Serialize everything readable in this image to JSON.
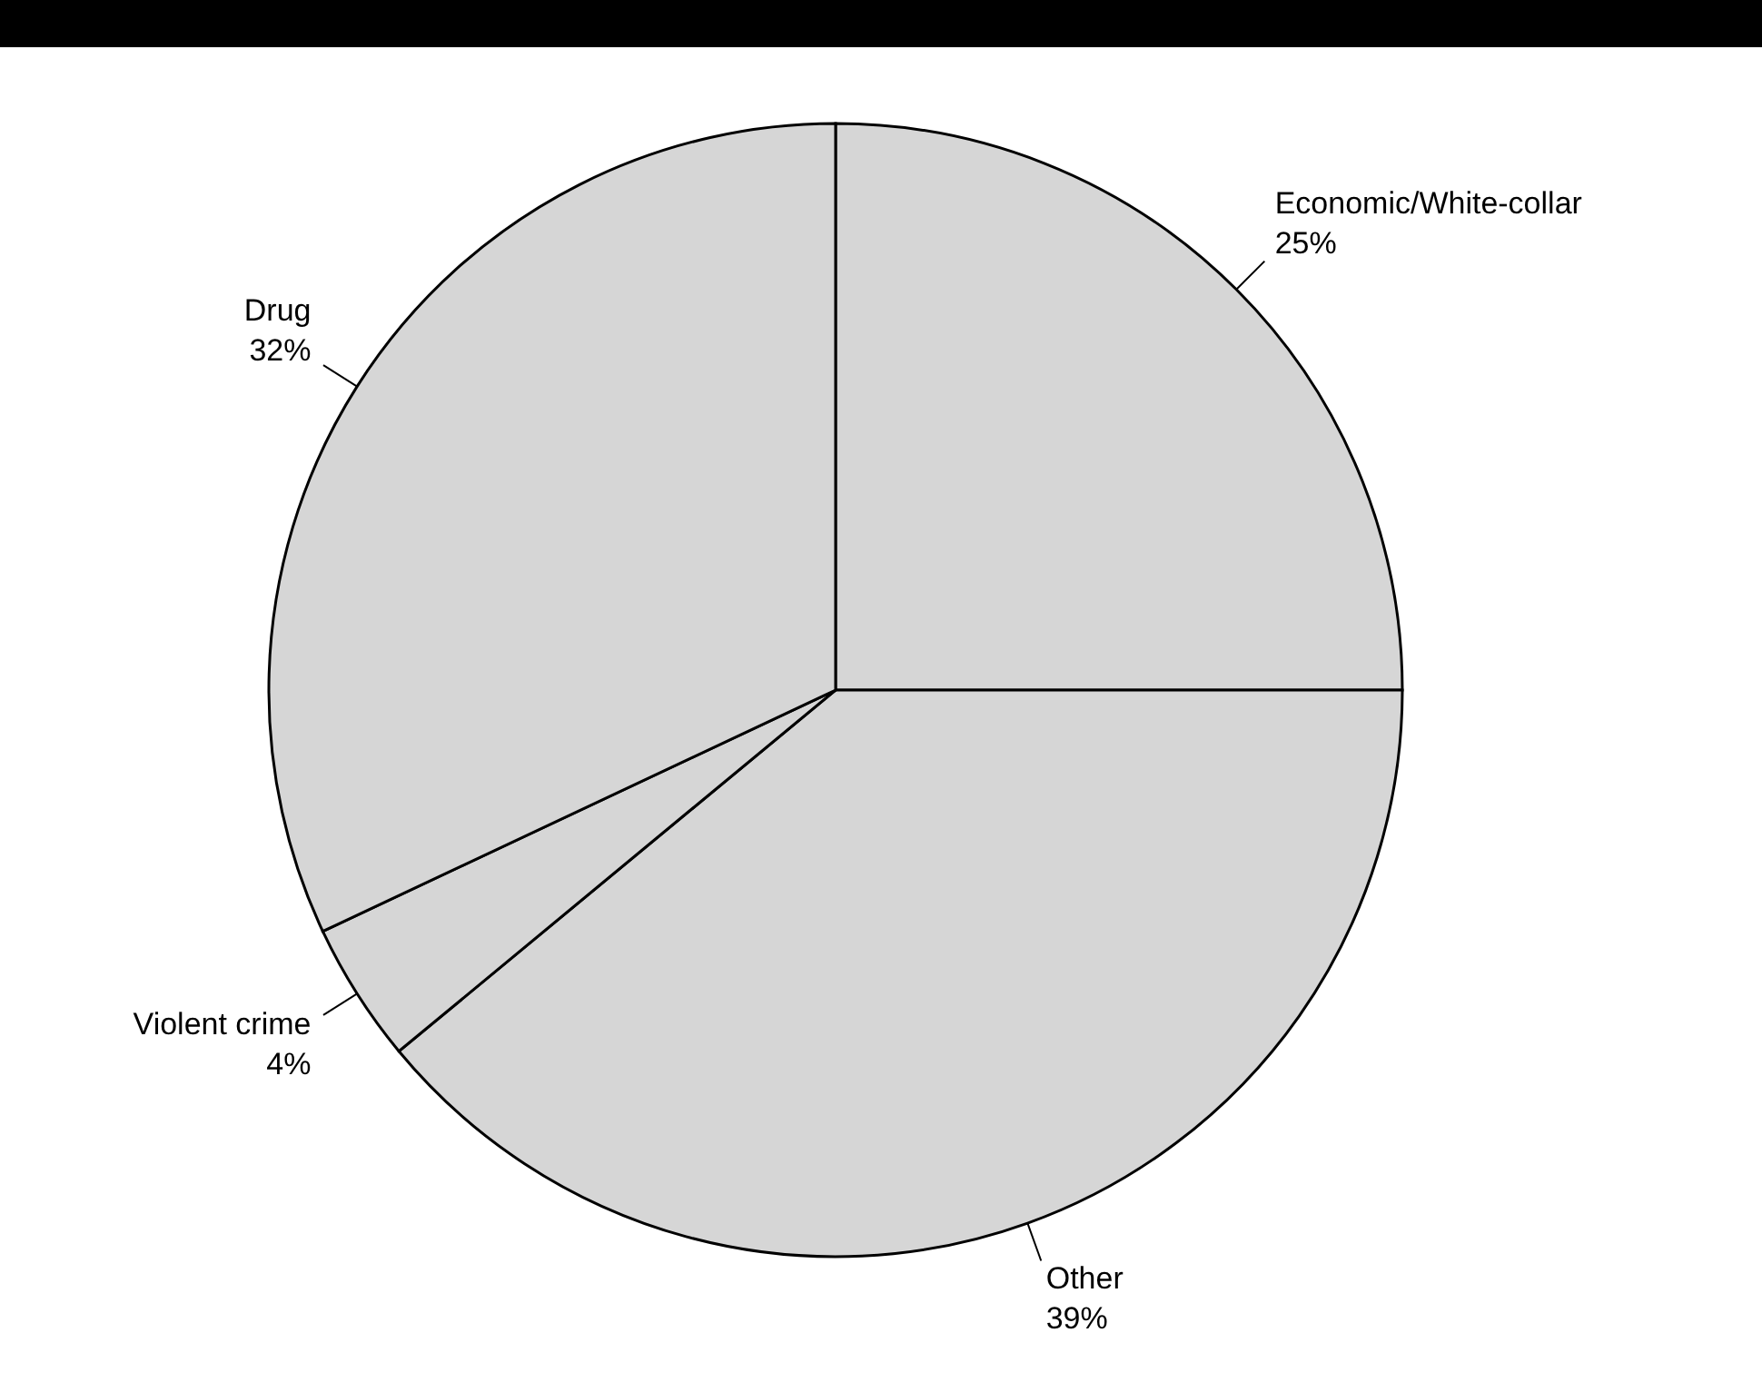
{
  "chart_data": {
    "type": "pie",
    "categories": [
      "Economic/White-collar",
      "Other",
      "Violent crime",
      "Drug"
    ],
    "values": [
      25,
      39,
      4,
      32
    ],
    "value_labels": [
      "25%",
      "39%",
      "4%",
      "32%"
    ],
    "colors": [
      "#d6d6d6",
      "#d6d6d6",
      "#d6d6d6",
      "#d6d6d6"
    ],
    "legend": false
  }
}
